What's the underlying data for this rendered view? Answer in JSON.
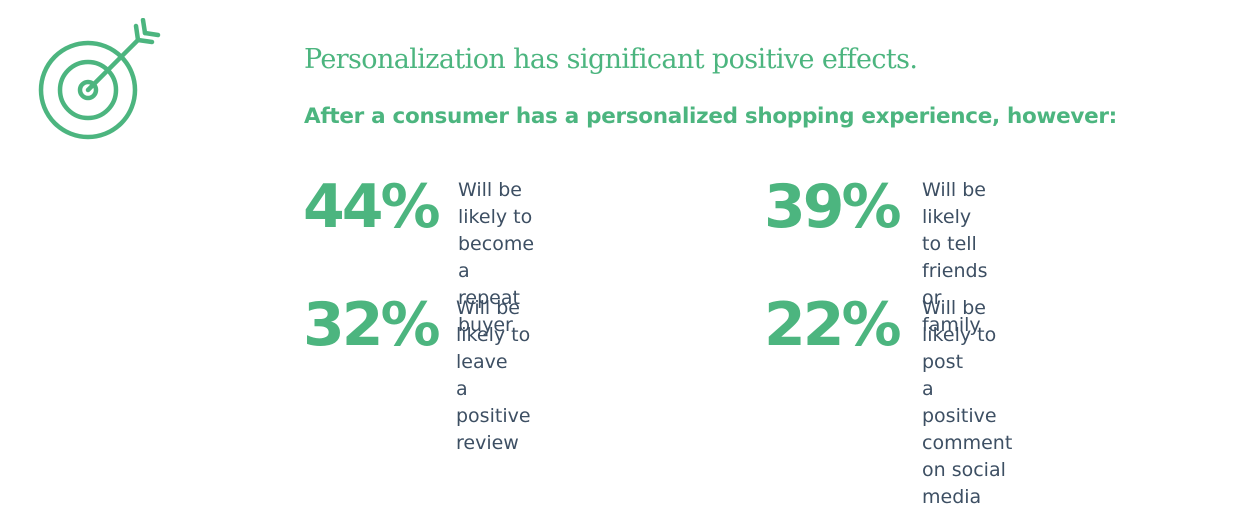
{
  "icon": {
    "name": "target-icon",
    "color": "#4cb57f"
  },
  "title": "Personalization has significant positive effects.",
  "subtitle": "After a consumer has a personalized shopping experience, however:",
  "stats": [
    {
      "value": "44%",
      "text": "Will be likely to\nbecome a repeat buyer"
    },
    {
      "value": "39%",
      "text": "Will be likely to tell\nfriends or family"
    },
    {
      "value": "32%",
      "text": "Will be likely to leave\na positive review"
    },
    {
      "value": "22%",
      "text": "Will be likely to post\na positive comment\non social media"
    }
  ],
  "colors": {
    "accent": "#4cb57f",
    "body_text": "#3d4f63",
    "background": "#ffffff"
  }
}
